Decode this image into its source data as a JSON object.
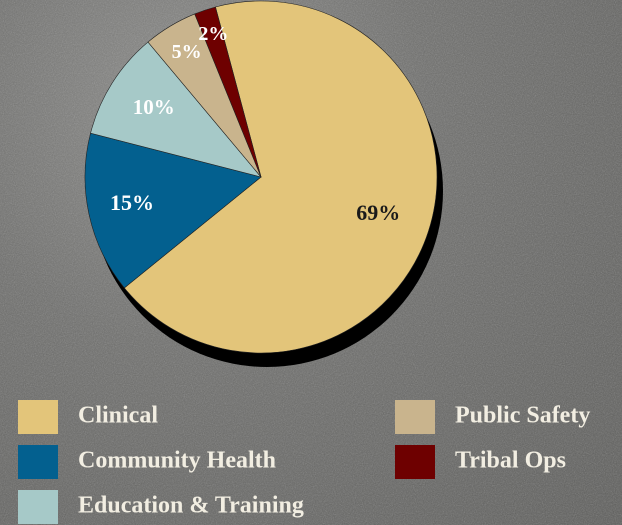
{
  "chart_data": {
    "type": "pie",
    "categories": [
      "Clinical",
      "Community Health",
      "Education & Training",
      "Public Safety",
      "Tribal Ops"
    ],
    "values": [
      69,
      15,
      10,
      5,
      2
    ],
    "value_labels": [
      "69%",
      "15%",
      "10%",
      "5%",
      "2%"
    ],
    "colors": [
      "#e3c57a",
      "#03608f",
      "#a6c9c8",
      "#c9b48d",
      "#6e0000"
    ],
    "legend": "bottom"
  }
}
